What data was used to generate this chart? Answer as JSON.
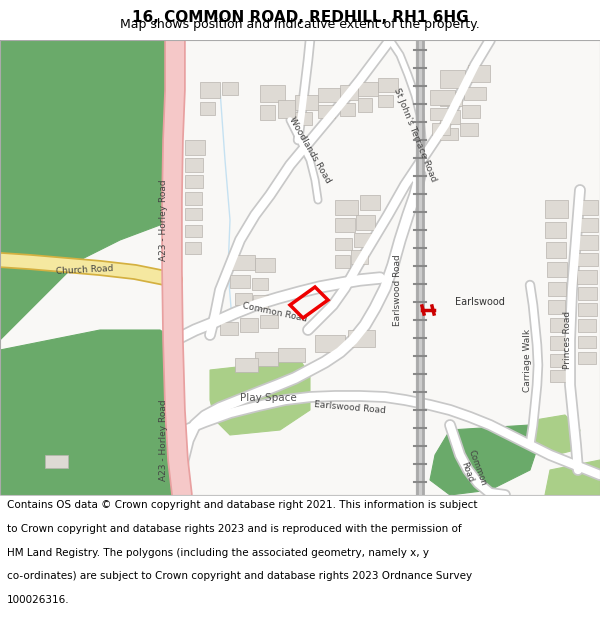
{
  "title": "16, COMMON ROAD, REDHILL, RH1 6HG",
  "subtitle": "Map shows position and indicative extent of the property.",
  "footer_lines": [
    "Contains OS data © Crown copyright and database right 2021. This information is subject",
    "to Crown copyright and database rights 2023 and is reproduced with the permission of",
    "HM Land Registry. The polygons (including the associated geometry, namely x, y",
    "co-ordinates) are subject to Crown copyright and database rights 2023 Ordnance Survey",
    "100026316."
  ],
  "map_bg": "#f2efeb",
  "white_area": "#f9f8f6",
  "road_white": "#ffffff",
  "road_outline": "#c8c8c8",
  "major_road_fill": "#f5c8c8",
  "major_road_edge": "#e8a0a0",
  "yellow_road_fill": "#f5e8a0",
  "yellow_road_edge": "#d4b040",
  "green_dark": "#6aaa6a",
  "green_light": "#aacf88",
  "building_fill": "#dedad4",
  "building_edge": "#b8b4ae",
  "railway_gray": "#888888",
  "railway_white": "#ffffff",
  "red_plot": "#ee0000",
  "blue_water": "#b0d8f0",
  "title_fontsize": 11,
  "subtitle_fontsize": 9,
  "footer_fontsize": 7.5
}
